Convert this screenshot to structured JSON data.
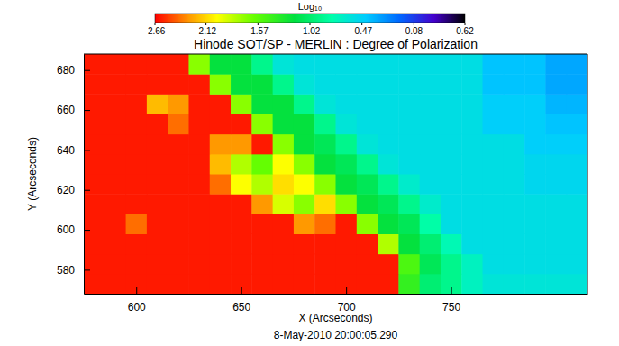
{
  "chart_data": {
    "type": "heatmap",
    "title": "Hinode SOT/SP - MERLIN : Degree of Polarization",
    "x_label": "X (Arcseconds)",
    "y_label": "Y (Arcseconds)",
    "annotation": "8-May-2010 20:00:05.290",
    "xlim": [
      575,
      815
    ],
    "ylim": [
      568,
      688
    ],
    "xticks": [
      600,
      650,
      700,
      750
    ],
    "yticks": [
      580,
      600,
      620,
      640,
      660,
      680
    ],
    "x": [
      580,
      590,
      600,
      610,
      620,
      630,
      640,
      650,
      660,
      670,
      680,
      690,
      700,
      710,
      720,
      730,
      740,
      750,
      760,
      770,
      780,
      790,
      800,
      810
    ],
    "y": [
      573,
      583,
      593,
      603,
      613,
      623,
      633,
      643,
      653,
      663,
      673,
      683
    ],
    "z": [
      [
        -2.6,
        -2.6,
        -2.6,
        -2.6,
        -2.6,
        -2.6,
        -2.6,
        -2.6,
        -2.6,
        -2.6,
        -2.6,
        -2.6,
        -2.6,
        -2.6,
        -2.6,
        -1.4,
        -1.0,
        -0.9,
        -0.7,
        -0.6,
        -0.6,
        -0.6,
        -0.6,
        -0.6
      ],
      [
        -2.6,
        -2.6,
        -2.6,
        -2.6,
        -2.6,
        -2.6,
        -2.6,
        -2.6,
        -2.6,
        -2.6,
        -2.6,
        -2.6,
        -2.6,
        -2.6,
        -2.6,
        -1.5,
        -1.1,
        -0.9,
        -0.7,
        -0.55,
        -0.55,
        -0.55,
        -0.55,
        -0.55
      ],
      [
        -2.6,
        -2.6,
        -2.6,
        -2.6,
        -2.6,
        -2.6,
        -2.6,
        -2.6,
        -2.6,
        -2.6,
        -2.6,
        -2.6,
        -2.6,
        -2.6,
        -1.8,
        -1.2,
        -1.0,
        -0.75,
        -0.55,
        -0.55,
        -0.55,
        -0.55,
        -0.55,
        -0.55
      ],
      [
        -2.6,
        -2.6,
        -2.4,
        -2.6,
        -2.6,
        -2.6,
        -2.6,
        -2.6,
        -2.6,
        -2.6,
        -2.3,
        -2.4,
        -2.6,
        -1.7,
        -1.2,
        -1.1,
        -0.8,
        -0.55,
        -0.55,
        -0.55,
        -0.55,
        -0.55,
        -0.55,
        -0.55
      ],
      [
        -2.6,
        -2.6,
        -2.6,
        -2.6,
        -2.6,
        -2.6,
        -2.6,
        -2.6,
        -2.3,
        -1.9,
        -1.7,
        -2.1,
        -1.7,
        -1.2,
        -1.1,
        -0.9,
        -0.65,
        -0.55,
        -0.55,
        -0.55,
        -0.55,
        -0.55,
        -0.55,
        -0.55
      ],
      [
        -2.6,
        -2.6,
        -2.6,
        -2.6,
        -2.6,
        -2.6,
        -2.4,
        -2.0,
        -1.8,
        -2.1,
        -2.0,
        -1.7,
        -1.2,
        -1.1,
        -0.9,
        -0.65,
        -0.55,
        -0.55,
        -0.55,
        -0.55,
        -0.55,
        -0.5,
        -0.5,
        -0.5
      ],
      [
        -2.6,
        -2.6,
        -2.6,
        -2.6,
        -2.6,
        -2.6,
        -2.2,
        -1.8,
        -1.6,
        -2.0,
        -1.7,
        -1.2,
        -1.1,
        -0.9,
        -0.6,
        -0.55,
        -0.55,
        -0.55,
        -0.55,
        -0.55,
        -0.55,
        -0.5,
        -0.5,
        -0.5
      ],
      [
        -2.6,
        -2.6,
        -2.6,
        -2.6,
        -2.6,
        -2.6,
        -2.3,
        -2.3,
        -2.6,
        -1.7,
        -1.2,
        -1.1,
        -0.9,
        -0.6,
        -0.55,
        -0.55,
        -0.55,
        -0.55,
        -0.55,
        -0.55,
        -0.55,
        -0.45,
        -0.45,
        -0.45
      ],
      [
        -2.6,
        -2.6,
        -2.6,
        -2.6,
        -2.4,
        -2.6,
        -2.6,
        -2.6,
        -1.7,
        -1.2,
        -1.2,
        -0.9,
        -0.6,
        -0.55,
        -0.55,
        -0.55,
        -0.55,
        -0.55,
        -0.55,
        -0.45,
        -0.45,
        -0.45,
        -0.4,
        -0.4
      ],
      [
        -2.6,
        -2.6,
        -2.6,
        -2.2,
        -2.3,
        -2.6,
        -2.6,
        -1.7,
        -1.2,
        -1.2,
        -0.9,
        -0.6,
        -0.55,
        -0.55,
        -0.55,
        -0.55,
        -0.55,
        -0.55,
        -0.55,
        -0.45,
        -0.45,
        -0.45,
        -0.35,
        -0.35
      ],
      [
        -2.6,
        -2.6,
        -2.6,
        -2.6,
        -2.6,
        -2.6,
        -1.7,
        -1.2,
        -1.2,
        -0.9,
        -0.6,
        -0.55,
        -0.55,
        -0.55,
        -0.55,
        -0.55,
        -0.55,
        -0.55,
        -0.55,
        -0.4,
        -0.4,
        -0.4,
        -0.3,
        -0.3
      ],
      [
        -2.6,
        -2.6,
        -2.6,
        -2.6,
        -2.6,
        -1.7,
        -1.2,
        -1.2,
        -0.9,
        -0.6,
        -0.55,
        -0.55,
        -0.55,
        -0.55,
        -0.55,
        -0.55,
        -0.55,
        -0.55,
        -0.55,
        -0.4,
        -0.4,
        -0.4,
        -0.3,
        -0.3
      ]
    ],
    "colorbar": {
      "label": "Log₁₀",
      "range": [
        -2.66,
        0.62
      ],
      "ticks": [
        -2.66,
        -2.12,
        -1.57,
        -1.02,
        -0.47,
        0.08,
        0.62
      ]
    }
  }
}
